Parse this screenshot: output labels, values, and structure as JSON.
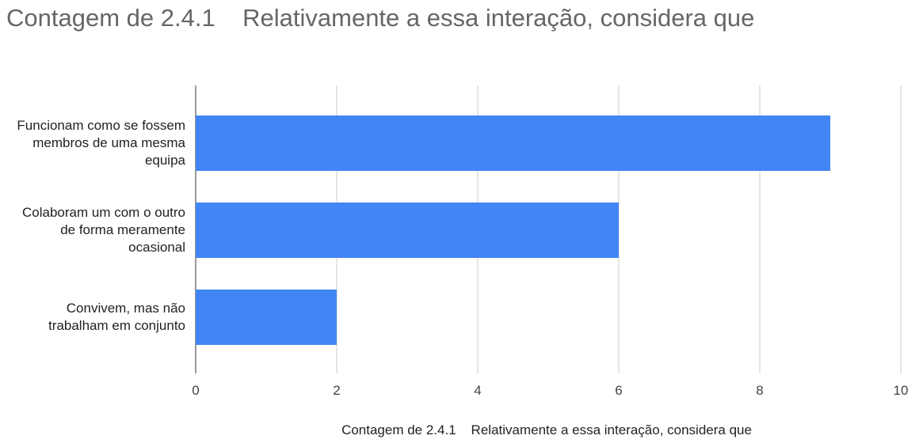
{
  "chart_data": {
    "type": "hbar",
    "title": "Contagem de 2.4.1    Relativamente a essa interação, considera que",
    "x_label": "Contagem de 2.4.1    Relativamente a essa interação, considera que",
    "categories": [
      "Funcionam como se fossem membros de uma mesma equipa",
      "Colaboram um com o outro de forma meramente ocasional",
      "Convivem, mas não trabalham em conjunto"
    ],
    "values": [
      9,
      6,
      2
    ],
    "color": "#4285f4",
    "xlim": [
      0,
      10
    ],
    "xticks": [
      0,
      2,
      4,
      6,
      8,
      10
    ],
    "grid": true
  }
}
